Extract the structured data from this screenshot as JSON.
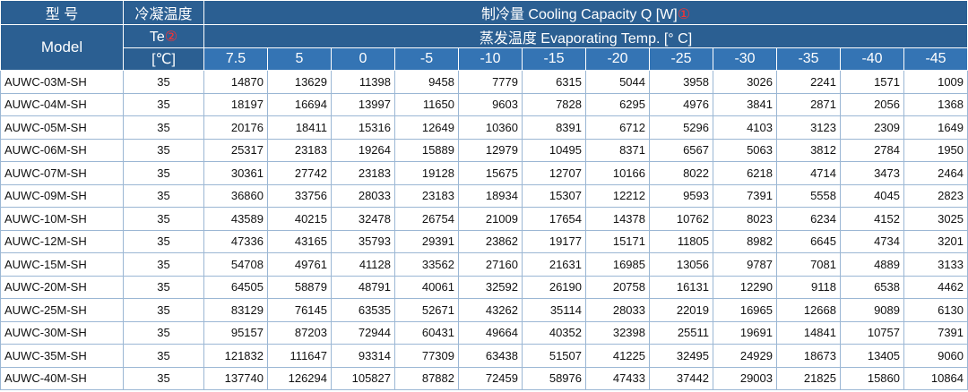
{
  "header": {
    "type_cn": "型 号",
    "cond_cn": "冷凝温度",
    "capacity_title": "制冷量 Cooling Capacity Q [W]",
    "capacity_mark": "①",
    "model": "Model",
    "te": "Te",
    "te_mark": "②",
    "evap_title": "蒸发温度 Evaporating Temp. [° C]",
    "unit": "[℃]",
    "temps": [
      7.5,
      5,
      0,
      -5,
      -10,
      -15,
      -20,
      -25,
      -30,
      -35,
      -40,
      -45
    ]
  },
  "rows": [
    [
      "AUWC-03M-SH",
      35,
      14870,
      13629,
      11398,
      9458,
      7779,
      6315,
      5044,
      3958,
      3026,
      2241,
      1571,
      1009
    ],
    [
      "AUWC-04M-SH",
      35,
      18197,
      16694,
      13997,
      11650,
      9603,
      7828,
      6295,
      4976,
      3841,
      2871,
      2056,
      1368
    ],
    [
      "AUWC-05M-SH",
      35,
      20176,
      18411,
      15316,
      12649,
      10360,
      8391,
      6712,
      5296,
      4103,
      3123,
      2309,
      1649
    ],
    [
      "AUWC-06M-SH",
      35,
      25317,
      23183,
      19264,
      15889,
      12979,
      10495,
      8371,
      6567,
      5063,
      3812,
      2784,
      1950
    ],
    [
      "AUWC-07M-SH",
      35,
      30361,
      27742,
      23183,
      19128,
      15675,
      12707,
      10166,
      8022,
      6218,
      4714,
      3473,
      2464
    ],
    [
      "AUWC-09M-SH",
      35,
      36860,
      33756,
      28033,
      23183,
      18934,
      15307,
      12212,
      9593,
      7391,
      5558,
      4045,
      2823
    ],
    [
      "AUWC-10M-SH",
      35,
      43589,
      40215,
      32478,
      26754,
      21009,
      17654,
      14378,
      10762,
      8023,
      6234,
      4152,
      3025
    ],
    [
      "AUWC-12M-SH",
      35,
      47336,
      43165,
      35793,
      29391,
      23862,
      19177,
      15171,
      11805,
      8982,
      6645,
      4734,
      3201
    ],
    [
      "AUWC-15M-SH",
      35,
      54708,
      49761,
      41128,
      33562,
      27160,
      21631,
      16985,
      13056,
      9787,
      7081,
      4889,
      3133
    ],
    [
      "AUWC-20M-SH",
      35,
      64505,
      58879,
      48791,
      40061,
      32592,
      26190,
      20758,
      16131,
      12290,
      9118,
      6538,
      4462
    ],
    [
      "AUWC-25M-SH",
      35,
      83129,
      76145,
      63535,
      52671,
      43262,
      35114,
      28033,
      22019,
      16965,
      12668,
      9089,
      6130
    ],
    [
      "AUWC-30M-SH",
      35,
      95157,
      87203,
      72944,
      60431,
      49664,
      40352,
      32398,
      25511,
      19691,
      14841,
      10757,
      7391
    ],
    [
      "AUWC-35M-SH",
      35,
      121832,
      111647,
      93314,
      77309,
      63438,
      51507,
      41225,
      32495,
      24929,
      18673,
      13405,
      9060
    ],
    [
      "AUWC-40M-SH",
      35,
      137740,
      126294,
      105827,
      87882,
      72459,
      58976,
      47433,
      37442,
      29003,
      21825,
      15860,
      10864
    ]
  ]
}
